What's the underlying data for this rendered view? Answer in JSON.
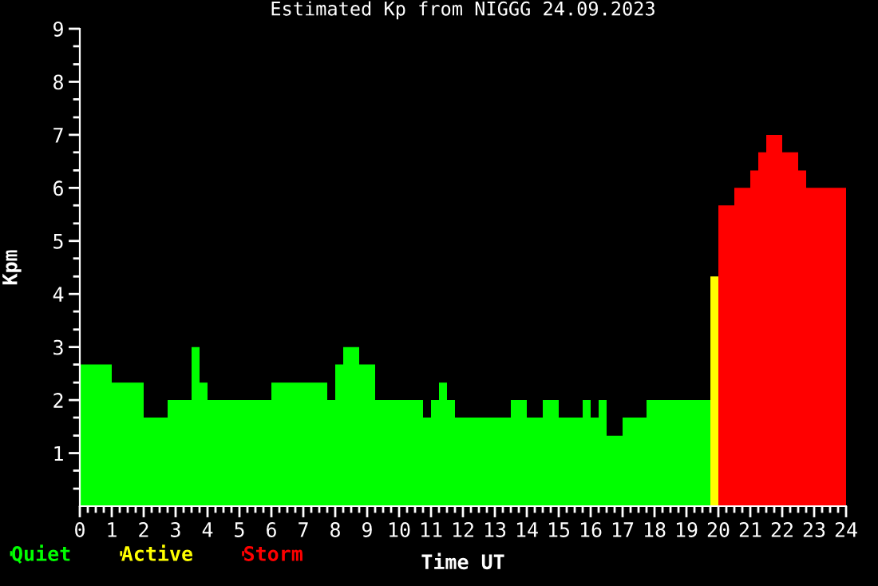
{
  "chart_data": {
    "type": "area",
    "title": "Estimated Kp from NIGGG 24.09.2023",
    "xlabel": "Time UT",
    "ylabel": "Kpm",
    "xlim": [
      0,
      24
    ],
    "ylim": [
      0,
      9
    ],
    "xticks": [
      0,
      {
        "value": 0.25,
        "label": null
      },
      {
        "value": 0.5,
        "label": null
      },
      {
        "value": 0.75,
        "label": null
      },
      1,
      {
        "value": 1.25,
        "label": null
      },
      {
        "value": 1.5,
        "label": null
      },
      {
        "value": 1.75,
        "label": null
      },
      2,
      {
        "value": 2.25,
        "label": null
      },
      {
        "value": 2.5,
        "label": null
      },
      {
        "value": 2.75,
        "label": null
      },
      3,
      {
        "value": 3.25,
        "label": null
      },
      {
        "value": 3.5,
        "label": null
      },
      {
        "value": 3.75,
        "label": null
      },
      4,
      {
        "value": 4.25,
        "label": null
      },
      {
        "value": 4.5,
        "label": null
      },
      {
        "value": 4.75,
        "label": null
      },
      5,
      {
        "value": 5.25,
        "label": null
      },
      {
        "value": 5.5,
        "label": null
      },
      {
        "value": 5.75,
        "label": null
      },
      6,
      {
        "value": 6.25,
        "label": null
      },
      {
        "value": 6.5,
        "label": null
      },
      {
        "value": 6.75,
        "label": null
      },
      7,
      {
        "value": 7.25,
        "label": null
      },
      {
        "value": 7.5,
        "label": null
      },
      {
        "value": 7.75,
        "label": null
      },
      8,
      {
        "value": 8.25,
        "label": null
      },
      {
        "value": 8.5,
        "label": null
      },
      {
        "value": 8.75,
        "label": null
      },
      9,
      {
        "value": 9.25,
        "label": null
      },
      {
        "value": 9.5,
        "label": null
      },
      {
        "value": 9.75,
        "label": null
      },
      10,
      {
        "value": 10.25,
        "label": null
      },
      {
        "value": 10.5,
        "label": null
      },
      {
        "value": 10.75,
        "label": null
      },
      11,
      {
        "value": 11.25,
        "label": null
      },
      {
        "value": 11.5,
        "label": null
      },
      {
        "value": 11.75,
        "label": null
      },
      12,
      {
        "value": 12.25,
        "label": null
      },
      {
        "value": 12.5,
        "label": null
      },
      {
        "value": 12.75,
        "label": null
      },
      13,
      {
        "value": 13.25,
        "label": null
      },
      {
        "value": 13.5,
        "label": null
      },
      {
        "value": 13.75,
        "label": null
      },
      14,
      {
        "value": 14.25,
        "label": null
      },
      {
        "value": 14.5,
        "label": null
      },
      {
        "value": 14.75,
        "label": null
      },
      15,
      {
        "value": 15.25,
        "label": null
      },
      {
        "value": 15.5,
        "label": null
      },
      {
        "value": 15.75,
        "label": null
      },
      16,
      {
        "value": 16.25,
        "label": null
      },
      {
        "value": 16.5,
        "label": null
      },
      {
        "value": 16.75,
        "label": null
      },
      17,
      {
        "value": 17.25,
        "label": null
      },
      {
        "value": 17.5,
        "label": null
      },
      {
        "value": 17.75,
        "label": null
      },
      18,
      {
        "value": 18.25,
        "label": null
      },
      {
        "value": 18.5,
        "label": null
      },
      {
        "value": 18.75,
        "label": null
      },
      19,
      {
        "value": 19.25,
        "label": null
      },
      {
        "value": 19.5,
        "label": null
      },
      {
        "value": 19.75,
        "label": null
      },
      20,
      {
        "value": 20.25,
        "label": null
      },
      {
        "value": 20.5,
        "label": null
      },
      {
        "value": 20.75,
        "label": null
      },
      21,
      {
        "value": 21.25,
        "label": null
      },
      {
        "value": 21.5,
        "label": null
      },
      {
        "value": 21.75,
        "label": null
      },
      22,
      {
        "value": 22.25,
        "label": null
      },
      {
        "value": 22.5,
        "label": null
      },
      {
        "value": 22.75,
        "label": null
      },
      23,
      {
        "value": 23.25,
        "label": null
      },
      {
        "value": 23.5,
        "label": null
      },
      {
        "value": 23.75,
        "label": null
      },
      24
    ],
    "yticks": [
      {
        "value": 0.33,
        "label": null
      },
      {
        "value": 0.67,
        "label": null
      },
      1,
      {
        "value": 1.33,
        "label": null
      },
      {
        "value": 1.67,
        "label": null
      },
      2,
      {
        "value": 2.33,
        "label": null
      },
      {
        "value": 2.67,
        "label": null
      },
      3,
      {
        "value": 3.33,
        "label": null
      },
      {
        "value": 3.67,
        "label": null
      },
      4,
      {
        "value": 4.33,
        "label": null
      },
      {
        "value": 4.67,
        "label": null
      },
      5,
      {
        "value": 5.33,
        "label": null
      },
      {
        "value": 5.67,
        "label": null
      },
      6,
      {
        "value": 6.33,
        "label": null
      },
      {
        "value": 6.67,
        "label": null
      },
      7,
      {
        "value": 7.33,
        "label": null
      },
      {
        "value": 7.67,
        "label": null
      },
      8,
      {
        "value": 8.33,
        "label": null
      },
      {
        "value": 8.67,
        "label": null
      },
      9
    ],
    "grid": false,
    "legend": "bottom left",
    "series": [
      {
        "name": "Quiet",
        "color": "#00ff00",
        "x": [
          0,
          1,
          1,
          2,
          2,
          2.75,
          2.75,
          3.5,
          3.5,
          3.75,
          3.75,
          4,
          4,
          6,
          6,
          7.75,
          7.75,
          8,
          8,
          8.25,
          8.25,
          8.75,
          8.75,
          9.25,
          9.25,
          10.75,
          10.75,
          11,
          11,
          11.25,
          11.25,
          11.5,
          11.5,
          11.75,
          11.75,
          13.5,
          13.5,
          14,
          14,
          14.5,
          14.5,
          15,
          15,
          15.75,
          15.75,
          16,
          16,
          16.25,
          16.25,
          16.5,
          16.5,
          17,
          17,
          17.75,
          17.75,
          19.75
        ],
        "values": [
          2.67,
          2.67,
          2.33,
          2.33,
          1.67,
          1.67,
          2.0,
          2.0,
          3.0,
          3.0,
          2.33,
          2.33,
          2.0,
          2.0,
          2.33,
          2.33,
          2.0,
          2.0,
          2.67,
          2.67,
          3.0,
          3.0,
          2.67,
          2.67,
          2.0,
          2.0,
          1.67,
          1.67,
          2.0,
          2.0,
          2.33,
          2.33,
          2.0,
          2.0,
          1.67,
          1.67,
          2.0,
          2.0,
          1.67,
          1.67,
          2.0,
          2.0,
          1.67,
          1.67,
          2.0,
          2.0,
          1.67,
          1.67,
          2.0,
          2.0,
          1.33,
          1.33,
          1.67,
          1.67,
          2.0,
          2.0
        ]
      },
      {
        "name": "Active",
        "color": "#ffff00",
        "x": [
          19.75,
          20
        ],
        "values": [
          4.33,
          4.33
        ]
      },
      {
        "name": "Storm",
        "color": "#ff0000",
        "x": [
          20,
          20.5,
          20.5,
          21,
          21,
          21.25,
          21.25,
          21.5,
          21.5,
          22,
          22,
          22.5,
          22.5,
          22.75,
          22.75,
          24
        ],
        "values": [
          5.67,
          5.67,
          6.0,
          6.0,
          6.33,
          6.33,
          6.67,
          6.67,
          7.0,
          7.0,
          6.67,
          6.67,
          6.33,
          6.33,
          6.0,
          6.0
        ]
      }
    ]
  }
}
